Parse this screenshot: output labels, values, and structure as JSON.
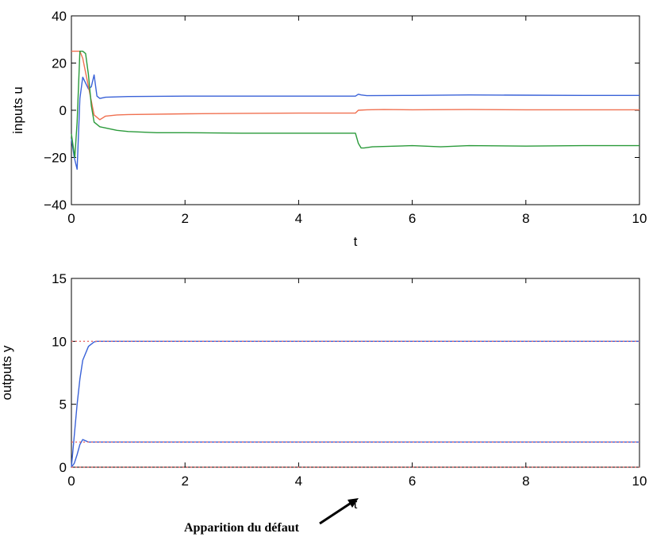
{
  "chart_data": [
    {
      "type": "line",
      "xlabel": "t",
      "ylabel": "inputs u",
      "xlim": [
        0,
        10
      ],
      "ylim": [
        -40,
        40
      ],
      "xticks": [
        0,
        2,
        4,
        6,
        8,
        10
      ],
      "yticks": [
        -40,
        -20,
        0,
        20,
        40
      ],
      "grid": false,
      "series": [
        {
          "color": "#3a62d8",
          "x": [
            0,
            0.05,
            0.1,
            0.15,
            0.2,
            0.3,
            0.35,
            0.4,
            0.45,
            0.5,
            0.6,
            1,
            2,
            3,
            4,
            5,
            5.05,
            5.1,
            5.2,
            6,
            7,
            8,
            9,
            10
          ],
          "y": [
            -12,
            -20,
            -25,
            5,
            14,
            9,
            10,
            15,
            6,
            5,
            5.5,
            5.8,
            6,
            6,
            6,
            6,
            6.8,
            6.5,
            6.2,
            6.3,
            6.5,
            6.4,
            6.3,
            6.3
          ]
        },
        {
          "color": "#f07050",
          "x": [
            0,
            0.02,
            0.05,
            0.1,
            0.15,
            0.2,
            0.3,
            0.4,
            0.5,
            0.6,
            0.8,
            1,
            2,
            3,
            4,
            5,
            5.05,
            5.2,
            5.5,
            6,
            7,
            8,
            9,
            10
          ],
          "y": [
            25,
            25,
            25,
            25,
            25,
            22,
            10,
            -2,
            -4,
            -2.5,
            -2,
            -1.8,
            -1.5,
            -1.3,
            -1.2,
            -1.2,
            0,
            0.2,
            0.3,
            0.2,
            0.3,
            0.2,
            0.2,
            0.2
          ]
        },
        {
          "color": "#2a9a3a",
          "x": [
            0,
            0.03,
            0.06,
            0.1,
            0.15,
            0.2,
            0.25,
            0.3,
            0.35,
            0.4,
            0.5,
            0.6,
            0.8,
            1,
            1.5,
            2,
            3,
            4,
            5,
            5.05,
            5.1,
            5.15,
            5.3,
            6,
            6.5,
            7,
            8,
            9,
            10
          ],
          "y": [
            -10,
            -15,
            -20,
            -5,
            25,
            25,
            24,
            15,
            2,
            -5,
            -7,
            -7.5,
            -8.5,
            -9,
            -9.5,
            -9.5,
            -9.7,
            -9.7,
            -9.7,
            -14,
            -16,
            -16,
            -15.5,
            -15,
            -15.5,
            -15,
            -15.2,
            -15,
            -15
          ]
        }
      ]
    },
    {
      "type": "line",
      "xlabel": "t",
      "ylabel": "outputs y",
      "xlim": [
        0,
        10
      ],
      "ylim": [
        0,
        15
      ],
      "xticks": [
        0,
        2,
        4,
        6,
        8,
        10
      ],
      "yticks": [
        0,
        5,
        10,
        15
      ],
      "grid": false,
      "series": [
        {
          "color": "#3a62d8",
          "x": [
            0,
            0.05,
            0.1,
            0.15,
            0.2,
            0.3,
            0.4,
            0.45,
            0.5,
            1,
            2,
            4,
            6,
            8,
            10
          ],
          "y": [
            0,
            2.5,
            5,
            7,
            8.5,
            9.6,
            9.95,
            10,
            10,
            10,
            10,
            10,
            10,
            10,
            10
          ]
        },
        {
          "color": "#3a62d8",
          "x": [
            0,
            0.05,
            0.1,
            0.15,
            0.2,
            0.3,
            0.5,
            1,
            2,
            4,
            5,
            6,
            8,
            10
          ],
          "y": [
            0,
            0.3,
            1,
            1.8,
            2.2,
            2,
            2,
            2,
            2,
            2,
            2,
            2,
            2,
            2
          ]
        },
        {
          "color": "#e86a6a",
          "dash": "2,3",
          "x": [
            0,
            10
          ],
          "y": [
            10,
            10
          ]
        },
        {
          "color": "#e86a6a",
          "dash": "2,3",
          "x": [
            0,
            10
          ],
          "y": [
            2,
            2
          ]
        },
        {
          "color": "#e86a6a",
          "dash": "2,3",
          "x": [
            0,
            10
          ],
          "y": [
            0,
            0
          ]
        }
      ]
    }
  ],
  "annotation": {
    "text": "Apparition du défaut"
  }
}
